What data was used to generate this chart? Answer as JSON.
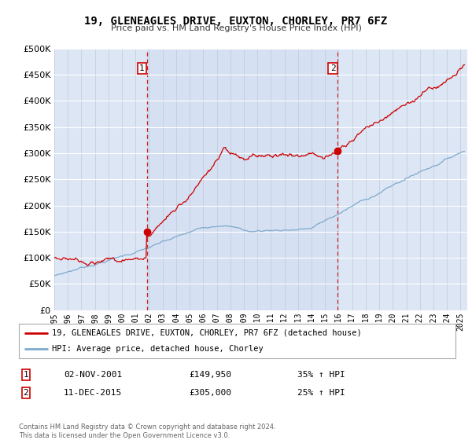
{
  "title": "19, GLENEAGLES DRIVE, EUXTON, CHORLEY, PR7 6FZ",
  "subtitle": "Price paid vs. HM Land Registry's House Price Index (HPI)",
  "legend_line1": "19, GLENEAGLES DRIVE, EUXTON, CHORLEY, PR7 6FZ (detached house)",
  "legend_line2": "HPI: Average price, detached house, Chorley",
  "transaction1_date": "02-NOV-2001",
  "transaction1_price": "£149,950",
  "transaction1_hpi": "35% ↑ HPI",
  "transaction2_date": "11-DEC-2015",
  "transaction2_price": "£305,000",
  "transaction2_hpi": "25% ↑ HPI",
  "copyright": "Contains HM Land Registry data © Crown copyright and database right 2024.\nThis data is licensed under the Open Government Licence v3.0.",
  "ylim": [
    0,
    500000
  ],
  "yticks": [
    0,
    50000,
    100000,
    150000,
    200000,
    250000,
    300000,
    350000,
    400000,
    450000,
    500000
  ],
  "plot_bg_color": "#dce6f5",
  "red_line_color": "#cc0000",
  "blue_line_color": "#7faacc",
  "vline_color": "#cc0000",
  "marker1_x": 2001.83,
  "marker1_y": 149950,
  "marker2_x": 2015.92,
  "marker2_y": 305000,
  "xmin": 1995,
  "xmax": 2025.5
}
